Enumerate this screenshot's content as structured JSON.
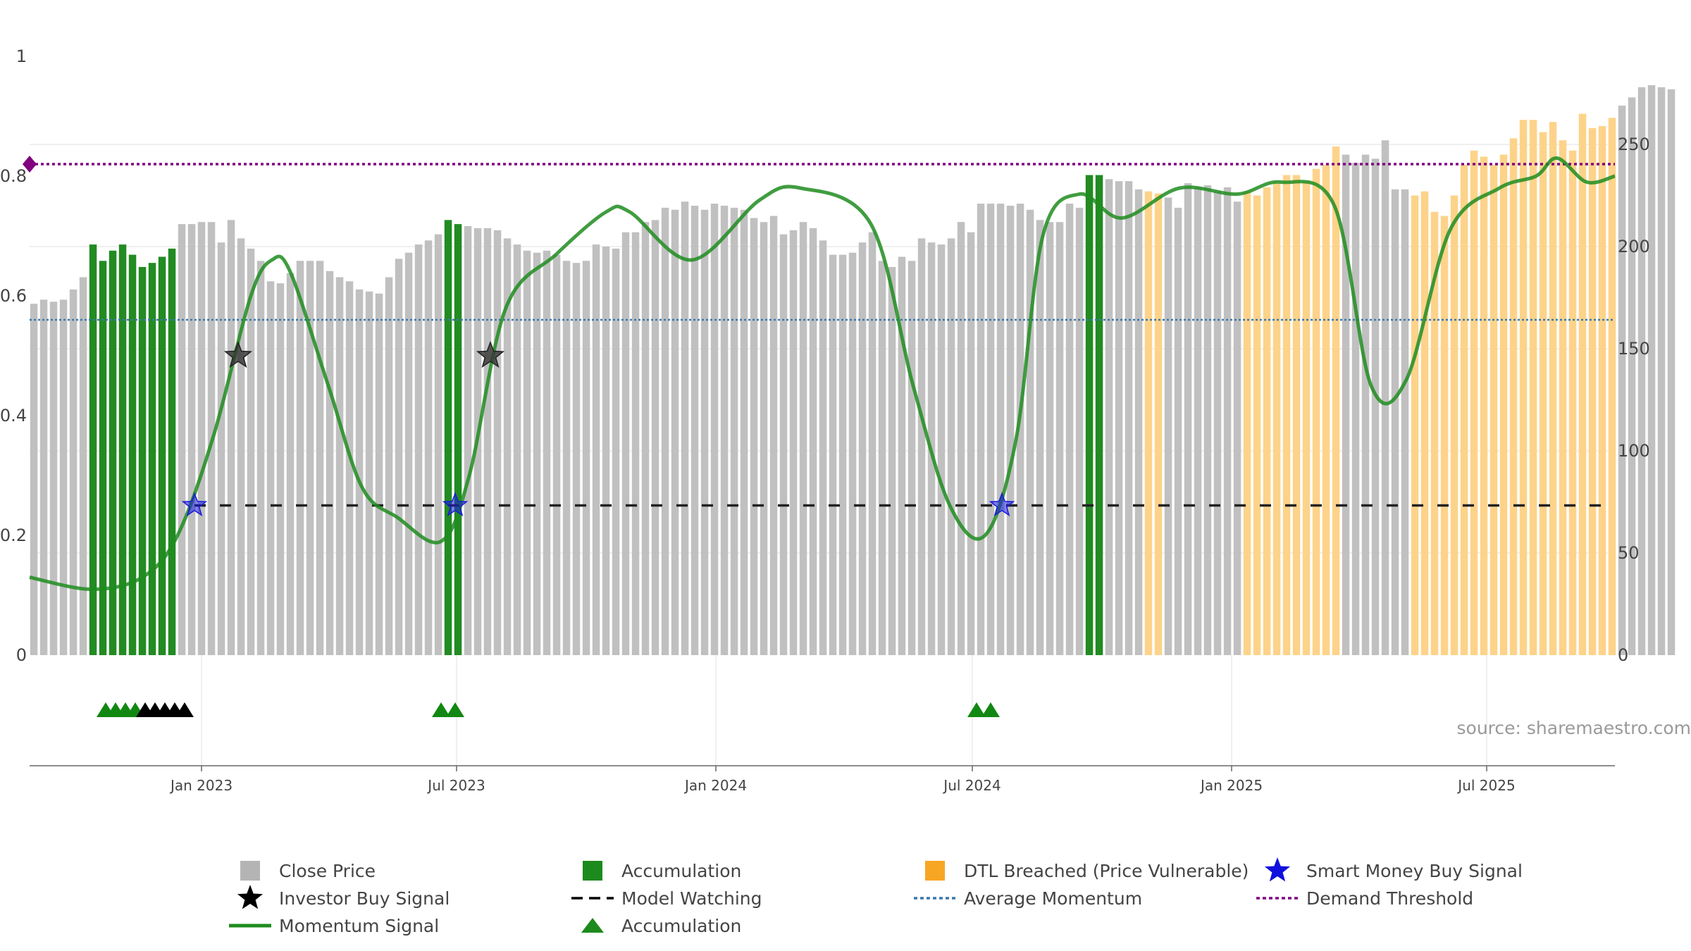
{
  "chart_data": {
    "type": "bar",
    "source": "source: sharemaestro.com",
    "left_axis": {
      "range": [
        0,
        1
      ],
      "ticks": [
        "0",
        "0.2",
        "0.4",
        "0.6",
        "0.8",
        "1"
      ]
    },
    "right_axis": {
      "range": [
        0,
        293
      ],
      "ticks": [
        "0",
        "50",
        "100",
        "150",
        "200",
        "250"
      ]
    },
    "x_axis": {
      "start": "2022-09-01",
      "end": "2025-09-30",
      "ticks": [
        {
          "label": "Jan 2023",
          "date": "2023-01-01"
        },
        {
          "label": "Jul 2023",
          "date": "2023-07-01"
        },
        {
          "label": "Jan 2024",
          "date": "2024-01-01"
        },
        {
          "label": "Jul 2024",
          "date": "2024-07-01"
        },
        {
          "label": "Jan 2025",
          "date": "2025-01-01"
        },
        {
          "label": "Jul 2025",
          "date": "2025-07-01"
        }
      ]
    },
    "bar_start": "2022-09-04",
    "bar_interval_days": 7,
    "close_prices": [
      172,
      174,
      173,
      174,
      179,
      185,
      201,
      193,
      198,
      201,
      196,
      190,
      192,
      195,
      199,
      211,
      211,
      212,
      212,
      202,
      213,
      204,
      199,
      193,
      183,
      182,
      187,
      193,
      193,
      193,
      188,
      185,
      183,
      179,
      178,
      177,
      185,
      194,
      197,
      201,
      203,
      206,
      213,
      211,
      210,
      209,
      209,
      208,
      204,
      201,
      198,
      197,
      198,
      196,
      193,
      192,
      193,
      201,
      200,
      199,
      207,
      207,
      212,
      213,
      219,
      218,
      222,
      220,
      218,
      221,
      220,
      219,
      218,
      214,
      212,
      215,
      206,
      208,
      212,
      209,
      203,
      196,
      196,
      197,
      202,
      207,
      193,
      190,
      195,
      193,
      204,
      202,
      201,
      204,
      212,
      207,
      221,
      221,
      221,
      220,
      221,
      218,
      213,
      212,
      212,
      221,
      219,
      235,
      235,
      233,
      232,
      232,
      228,
      227,
      226,
      224,
      219,
      231,
      229,
      230,
      227,
      229,
      222,
      227,
      225,
      229,
      231,
      235,
      235,
      232,
      238,
      240,
      249,
      245,
      241,
      245,
      243,
      252,
      228,
      228,
      225,
      227,
      217,
      215,
      225,
      240,
      247,
      244,
      240,
      245,
      253,
      262,
      262,
      256,
      261,
      252,
      247,
      265,
      258,
      259,
      263,
      269,
      273,
      278,
      279,
      278,
      277
    ],
    "bar_categories": [
      "gray",
      "gray",
      "gray",
      "gray",
      "gray",
      "gray",
      "green",
      "green",
      "green",
      "green",
      "green",
      "green",
      "green",
      "green",
      "green",
      "gray",
      "gray",
      "gray",
      "gray",
      "gray",
      "gray",
      "gray",
      "gray",
      "gray",
      "gray",
      "gray",
      "gray",
      "gray",
      "gray",
      "gray",
      "gray",
      "gray",
      "gray",
      "gray",
      "gray",
      "gray",
      "gray",
      "gray",
      "gray",
      "gray",
      "gray",
      "gray",
      "green",
      "green",
      "gray",
      "gray",
      "gray",
      "gray",
      "gray",
      "gray",
      "gray",
      "gray",
      "gray",
      "gray",
      "gray",
      "gray",
      "gray",
      "gray",
      "gray",
      "gray",
      "gray",
      "gray",
      "gray",
      "gray",
      "gray",
      "gray",
      "gray",
      "gray",
      "gray",
      "gray",
      "gray",
      "gray",
      "gray",
      "gray",
      "gray",
      "gray",
      "gray",
      "gray",
      "gray",
      "gray",
      "gray",
      "gray",
      "gray",
      "gray",
      "gray",
      "gray",
      "gray",
      "gray",
      "gray",
      "gray",
      "gray",
      "gray",
      "gray",
      "gray",
      "gray",
      "gray",
      "gray",
      "gray",
      "gray",
      "gray",
      "gray",
      "gray",
      "gray",
      "gray",
      "gray",
      "gray",
      "gray",
      "green",
      "green",
      "gray",
      "gray",
      "gray",
      "gray",
      "gray",
      "gray",
      "gray",
      "gray",
      "gray",
      "gray",
      "gray",
      "gray",
      "gray",
      "gray",
      "gray",
      "gray",
      "gray",
      "gray",
      "gray",
      "gray",
      "gray",
      "gray",
      "gray",
      "gray",
      "gray",
      "gray",
      "gray",
      "gray",
      "gray",
      "gray",
      "gray",
      "gray",
      "gray",
      "gray",
      "gray",
      "gray",
      "gray",
      "gray",
      "gray",
      "gray",
      "gray",
      "gray",
      "gray",
      "gray",
      "gray",
      "gray",
      "gray",
      "gray",
      "gray",
      "gray",
      "gray",
      "gray",
      "gray",
      "gray",
      "gray",
      "gray",
      "gray",
      "gray"
    ],
    "orange_ranges": [
      {
        "from": "2024-11-01",
        "to": "2024-11-12"
      },
      {
        "from": "2025-01-10",
        "to": "2025-03-18"
      },
      {
        "from": "2025-05-06",
        "to": "2025-09-30"
      }
    ],
    "momentum_signal": [
      {
        "date": "2022-09-01",
        "value": 0.13
      },
      {
        "date": "2022-10-15",
        "value": 0.11
      },
      {
        "date": "2022-11-20",
        "value": 0.13
      },
      {
        "date": "2022-12-15",
        "value": 0.2
      },
      {
        "date": "2023-01-10",
        "value": 0.37
      },
      {
        "date": "2023-02-05",
        "value": 0.6
      },
      {
        "date": "2023-02-20",
        "value": 0.66
      },
      {
        "date": "2023-03-05",
        "value": 0.64
      },
      {
        "date": "2023-04-01",
        "value": 0.45
      },
      {
        "date": "2023-04-25",
        "value": 0.28
      },
      {
        "date": "2023-05-20",
        "value": 0.23
      },
      {
        "date": "2023-06-20",
        "value": 0.19
      },
      {
        "date": "2023-07-10",
        "value": 0.3
      },
      {
        "date": "2023-08-05",
        "value": 0.58
      },
      {
        "date": "2023-09-10",
        "value": 0.67
      },
      {
        "date": "2023-10-15",
        "value": 0.74
      },
      {
        "date": "2023-11-01",
        "value": 0.74
      },
      {
        "date": "2023-12-15",
        "value": 0.66
      },
      {
        "date": "2024-02-01",
        "value": 0.76
      },
      {
        "date": "2024-03-01",
        "value": 0.78
      },
      {
        "date": "2024-04-20",
        "value": 0.72
      },
      {
        "date": "2024-05-20",
        "value": 0.45
      },
      {
        "date": "2024-06-15",
        "value": 0.25
      },
      {
        "date": "2024-07-10",
        "value": 0.2
      },
      {
        "date": "2024-08-01",
        "value": 0.36
      },
      {
        "date": "2024-08-20",
        "value": 0.7
      },
      {
        "date": "2024-09-15",
        "value": 0.77
      },
      {
        "date": "2024-10-15",
        "value": 0.73
      },
      {
        "date": "2024-11-25",
        "value": 0.78
      },
      {
        "date": "2025-01-05",
        "value": 0.77
      },
      {
        "date": "2025-02-05",
        "value": 0.79
      },
      {
        "date": "2025-03-15",
        "value": 0.75
      },
      {
        "date": "2025-04-10",
        "value": 0.45
      },
      {
        "date": "2025-05-05",
        "value": 0.46
      },
      {
        "date": "2025-06-05",
        "value": 0.71
      },
      {
        "date": "2025-07-10",
        "value": 0.78
      },
      {
        "date": "2025-08-05",
        "value": 0.8
      },
      {
        "date": "2025-08-20",
        "value": 0.83
      },
      {
        "date": "2025-09-10",
        "value": 0.79
      },
      {
        "date": "2025-09-30",
        "value": 0.8
      }
    ],
    "average_momentum": 0.56,
    "demand_threshold": 0.82,
    "model_watching_level": 0.25,
    "model_watching_from": "2022-12-27",
    "smart_money_buy_signals": [
      {
        "date": "2022-12-27",
        "value": 0.25
      },
      {
        "date": "2023-06-30",
        "value": 0.25
      },
      {
        "date": "2024-07-22",
        "value": 0.25
      }
    ],
    "investor_buy_signals": [
      {
        "date": "2023-01-27",
        "value": 0.5
      },
      {
        "date": "2023-07-25",
        "value": 0.5
      }
    ],
    "accumulation_markers": [
      {
        "date": "2022-10-25",
        "color": "green"
      },
      {
        "date": "2022-11-01",
        "color": "green"
      },
      {
        "date": "2022-11-08",
        "color": "green"
      },
      {
        "date": "2022-11-15",
        "color": "green"
      },
      {
        "date": "2022-11-22",
        "color": "black"
      },
      {
        "date": "2022-11-29",
        "color": "black"
      },
      {
        "date": "2022-12-06",
        "color": "black"
      },
      {
        "date": "2022-12-13",
        "color": "black"
      },
      {
        "date": "2022-12-20",
        "color": "black"
      },
      {
        "date": "2023-06-20",
        "color": "green"
      },
      {
        "date": "2023-06-30",
        "color": "green"
      },
      {
        "date": "2024-07-04",
        "color": "green"
      },
      {
        "date": "2024-07-14",
        "color": "green"
      }
    ],
    "colors": {
      "close_price": "#c0c0c0",
      "accumulation": "#228b22",
      "dtl_breached": "#fdd38a",
      "momentum": "#1e8c1e",
      "model_watching": "#222222",
      "average_momentum": "#3b78ab",
      "demand_threshold": "#800080",
      "smart_money": "#1a1adc",
      "investor": "#000000",
      "accumulation_marker": "#118811",
      "grid": "#ececec",
      "axis": "#666666"
    },
    "legend": [
      {
        "label": "Close Price",
        "kind": "square",
        "color": "#b4b4b4"
      },
      {
        "label": "Accumulation",
        "kind": "square",
        "color": "#1d8a1d"
      },
      {
        "label": "DTL Breached (Price Vulnerable)",
        "kind": "square",
        "color": "#f7a623"
      },
      {
        "label": "Smart Money Buy Signal",
        "kind": "star",
        "color": "#1010dd"
      },
      {
        "label": "Investor Buy Signal",
        "kind": "star",
        "color": "#000000"
      },
      {
        "label": "Model Watching",
        "kind": "dash",
        "color": "#000000"
      },
      {
        "label": "Average Momentum",
        "kind": "dot",
        "color": "#3b78ab"
      },
      {
        "label": "Demand Threshold",
        "kind": "dot",
        "color": "#800080"
      },
      {
        "label": "Momentum Signal",
        "kind": "line",
        "color": "#1e8c1e"
      },
      {
        "label": "Accumulation",
        "kind": "triangle",
        "color": "#1d8a1d"
      }
    ]
  }
}
